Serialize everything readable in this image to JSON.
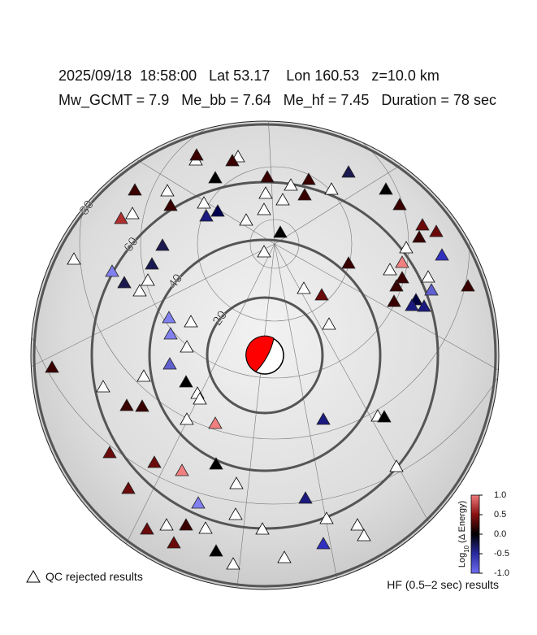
{
  "header": {
    "line1": "2025/09/18  18:58:00   Lat 53.17    Lon 160.53   z=10.0 km",
    "line2": "Mw_GCMT = 7.9   Me_bb = 7.64   Me_hf = 7.45   Duration = 78 sec"
  },
  "ring_distances": [
    20,
    40,
    60,
    80
  ],
  "colorbar": {
    "title_main": "Log",
    "title_sub": "10",
    "title_rest": " (Δ Energy)",
    "lim": [
      -1,
      1
    ],
    "ticks": [
      {
        "value": 1,
        "label": "1.0"
      },
      {
        "value": 0.5,
        "label": "0.5"
      },
      {
        "value": 0,
        "label": "0.0"
      },
      {
        "value": -0.5,
        "label": "-0.5"
      },
      {
        "value": -1,
        "label": "-1.0"
      }
    ]
  },
  "legend": {
    "qc": "QC rejected results"
  },
  "footer": "HF (0.5–2 sec) results"
}
